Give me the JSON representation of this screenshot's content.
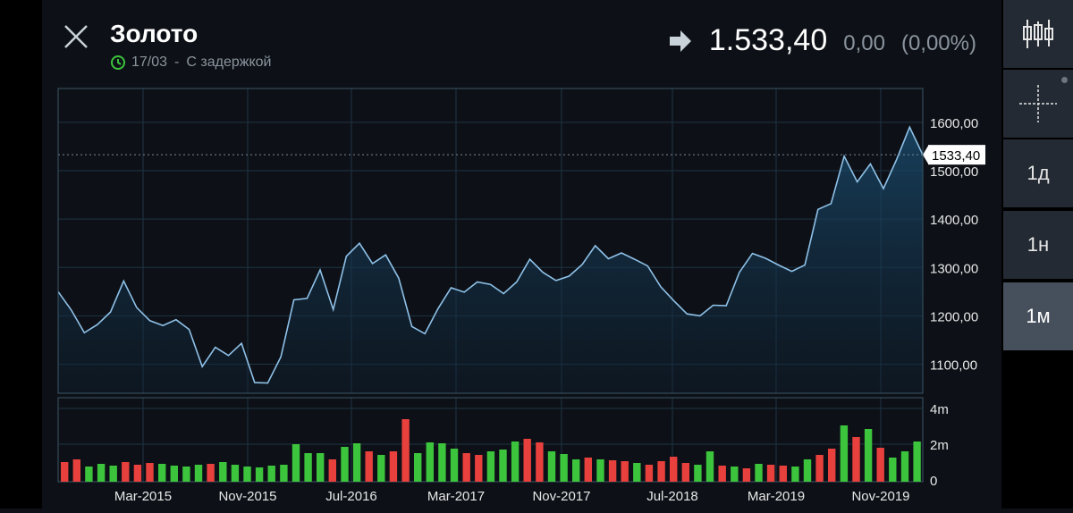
{
  "header": {
    "title": "Золото",
    "date": "17/03",
    "delay_label": "С задержкой",
    "price": "1.533,40",
    "change": "0,00",
    "change_pct": "(0,00%)"
  },
  "toolbar": {
    "candles_icon": "candlestick-icon",
    "crosshair_icon": "crosshair-icon",
    "periods": [
      "1д",
      "1н",
      "1м"
    ],
    "active_period": "1м"
  },
  "colors": {
    "line": "#8fc1e8",
    "up": "#3cc43c",
    "down": "#e8403c",
    "grid": "#1f3343"
  },
  "chart_data": [
    {
      "type": "area",
      "current_label": "1533,40",
      "y_ticks": [
        "1600,00",
        "1500,00",
        "1400,00",
        "1300,00",
        "1200,00",
        "1100,00"
      ],
      "ylim": [
        1040,
        1670
      ],
      "x_ticks": [
        "Mar-2015",
        "Nov-2015",
        "Jul-2016",
        "Mar-2017",
        "Nov-2017",
        "Jul-2018",
        "Mar-2019",
        "Nov-2019"
      ],
      "series": [
        {
          "values": [
            1250,
            1212,
            1165,
            1182,
            1208,
            1272,
            1217,
            1190,
            1180,
            1192,
            1172,
            1095,
            1135,
            1118,
            1143,
            1062,
            1061,
            1115,
            1233,
            1236,
            1295,
            1213,
            1323,
            1350,
            1308,
            1326,
            1278,
            1178,
            1163,
            1215,
            1258,
            1249,
            1270,
            1265,
            1246,
            1270,
            1317,
            1290,
            1273,
            1282,
            1306,
            1345,
            1318,
            1330,
            1317,
            1303,
            1260,
            1231,
            1204,
            1200,
            1222,
            1221,
            1290,
            1329,
            1319,
            1305,
            1292,
            1305,
            1420,
            1432,
            1530,
            1477,
            1514,
            1463,
            1523,
            1590,
            1533
          ]
        }
      ]
    },
    {
      "type": "bar",
      "y_ticks": [
        "4m",
        "2m",
        "0"
      ],
      "ylim": [
        0,
        4
      ],
      "series": [
        {
          "values": [
            1.0,
            1.15,
            0.75,
            0.9,
            0.8,
            1.0,
            0.85,
            0.95,
            0.9,
            0.8,
            0.75,
            0.85,
            0.9,
            1.0,
            0.85,
            0.75,
            0.7,
            0.8,
            0.85,
            2.0,
            1.5,
            1.5,
            1.15,
            1.85,
            2.05,
            1.6,
            1.4,
            1.6,
            3.4,
            1.5,
            2.1,
            2.05,
            1.75,
            1.5,
            1.4,
            1.6,
            1.7,
            2.15,
            2.3,
            2.1,
            1.6,
            1.45,
            1.15,
            1.25,
            1.15,
            1.1,
            1.05,
            0.95,
            0.85,
            1.05,
            1.3,
            0.95,
            0.85,
            1.6,
            0.8,
            0.75,
            0.65,
            0.9,
            0.85,
            0.8,
            0.75,
            1.15,
            1.4,
            1.75,
            3.05,
            2.4,
            2.85,
            1.8,
            1.25,
            1.6,
            2.15
          ],
          "up": [
            false,
            false,
            true,
            true,
            true,
            false,
            false,
            false,
            true,
            true,
            true,
            true,
            false,
            true,
            true,
            true,
            true,
            true,
            true,
            true,
            true,
            true,
            false,
            true,
            true,
            false,
            true,
            false,
            false,
            true,
            true,
            true,
            true,
            false,
            false,
            true,
            true,
            true,
            false,
            false,
            true,
            true,
            true,
            false,
            true,
            false,
            false,
            true,
            false,
            false,
            false,
            false,
            true,
            true,
            false,
            true,
            false,
            true,
            false,
            false,
            true,
            true,
            false,
            false,
            true,
            false,
            true,
            false,
            true,
            true,
            true
          ]
        }
      ]
    }
  ]
}
